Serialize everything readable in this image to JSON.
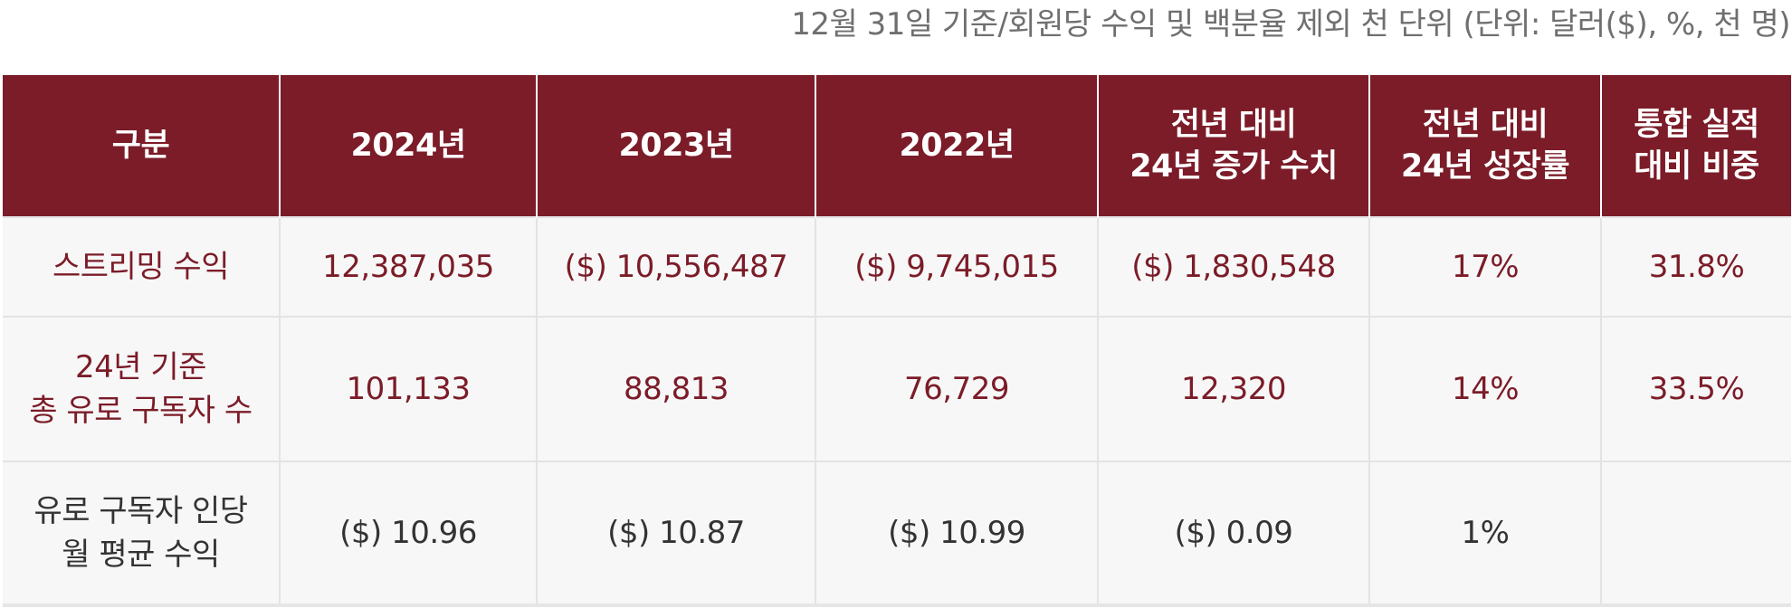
{
  "caption": "12월 31일 기준/회원당 수익 및 백분율 제외 천 단위 (단위: 달러($), %, 천 명)",
  "colors": {
    "header_bg": "#7b1c28",
    "accent_text": "#7b1c28",
    "body_bg": "#f7f7f7",
    "dark_text": "#333333"
  },
  "table": {
    "headers": [
      [
        "구분"
      ],
      [
        "2024년"
      ],
      [
        "2023년"
      ],
      [
        "2022년"
      ],
      [
        "전년 대비",
        "24년 증가 수치"
      ],
      [
        "전년 대비",
        "24년 성장률"
      ],
      [
        "통합 실적",
        "대비 비중"
      ]
    ],
    "rows": [
      {
        "label": [
          "스트리밍 수익"
        ],
        "cells": [
          "12,387,035",
          "($) 10,556,487",
          "($) 9,745,015",
          "($) 1,830,548",
          "17%",
          "31.8%"
        ]
      },
      {
        "label": [
          "24년 기준",
          "총 유로 구독자 수"
        ],
        "cells": [
          "101,133",
          "88,813",
          "76,729",
          "12,320",
          "14%",
          "33.5%"
        ]
      },
      {
        "label": [
          "유로 구독자 인당",
          "월 평균 수익"
        ],
        "cells": [
          "($) 10.96",
          "($) 10.87",
          "($) 10.99",
          "($) 0.09",
          "1%",
          ""
        ]
      }
    ]
  }
}
